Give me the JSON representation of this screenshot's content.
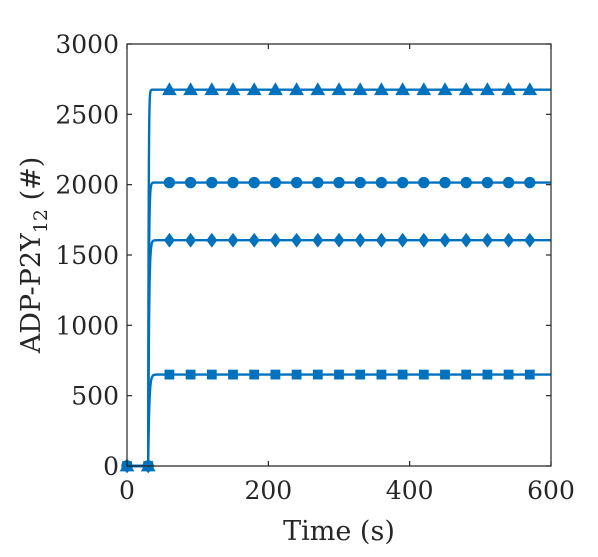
{
  "chart_data": {
    "type": "line",
    "title": "",
    "xlabel": "Time (s)",
    "ylabel": {
      "main": "ADP-P2Y",
      "sub": "12",
      "suffix": " (#)"
    },
    "xlim": [
      0,
      600
    ],
    "ylim": [
      0,
      3000
    ],
    "xticks": [
      "0",
      "200",
      "400",
      "600"
    ],
    "yticks": [
      "0",
      "500",
      "1000",
      "1500",
      "2000",
      "2500",
      "3000"
    ],
    "grid": false,
    "color": "#0072BD",
    "step_time": 30,
    "marker_times": [
      0,
      30,
      60,
      90,
      120,
      150,
      180,
      210,
      240,
      270,
      300,
      330,
      360,
      390,
      420,
      450,
      480,
      510,
      540,
      570
    ],
    "series": [
      {
        "marker": "triangle",
        "values": [
          0,
          0,
          2675,
          2675,
          2675,
          2675,
          2675,
          2675,
          2675,
          2675,
          2675,
          2675,
          2675,
          2675,
          2675,
          2675,
          2675,
          2675,
          2675,
          2675
        ]
      },
      {
        "marker": "circle",
        "values": [
          0,
          0,
          2015,
          2015,
          2015,
          2015,
          2015,
          2015,
          2015,
          2015,
          2015,
          2015,
          2015,
          2015,
          2015,
          2015,
          2015,
          2015,
          2015,
          2015
        ]
      },
      {
        "marker": "diamond",
        "values": [
          0,
          0,
          1605,
          1605,
          1605,
          1605,
          1605,
          1605,
          1605,
          1605,
          1605,
          1605,
          1605,
          1605,
          1605,
          1605,
          1605,
          1605,
          1605,
          1605
        ]
      },
      {
        "marker": "square",
        "values": [
          0,
          0,
          650,
          650,
          650,
          650,
          650,
          650,
          650,
          650,
          650,
          650,
          650,
          650,
          650,
          650,
          650,
          650,
          650,
          650
        ]
      }
    ]
  }
}
